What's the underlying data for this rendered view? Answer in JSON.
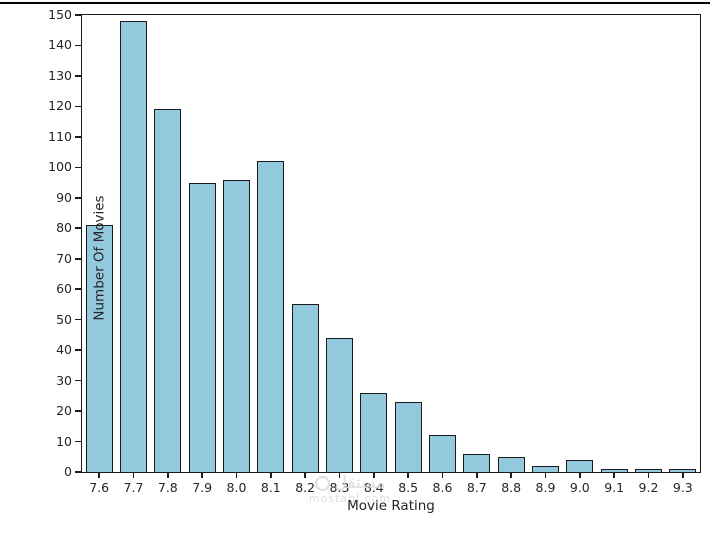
{
  "window": {
    "top_border_color": "#000000"
  },
  "chart_data": {
    "type": "bar",
    "title": "",
    "xlabel": "Movie Rating",
    "ylabel": "Number Of Movies",
    "categories": [
      "7.6",
      "7.7",
      "7.8",
      "7.9",
      "8.0",
      "8.1",
      "8.2",
      "8.3",
      "8.4",
      "8.5",
      "8.6",
      "8.7",
      "8.8",
      "8.9",
      "9.0",
      "9.1",
      "9.2",
      "9.3"
    ],
    "values": [
      81,
      148,
      119,
      95,
      96,
      102,
      55,
      44,
      26,
      23,
      12,
      6,
      5,
      2,
      4,
      1,
      1,
      1
    ],
    "ylim": [
      0,
      150
    ],
    "yticks": [
      0,
      10,
      20,
      30,
      40,
      50,
      60,
      70,
      80,
      90,
      100,
      110,
      120,
      130,
      140,
      150
    ],
    "grid": false,
    "legend": null,
    "bar_fill_color": "#92c9dd",
    "bar_edge_color": "#1c1c1c",
    "axis_color": "#1c1c1c",
    "text_color": "#262626"
  },
  "watermark": {
    "arabic": "مستقل",
    "latin": "mostaql.com",
    "color": "#d9d9d9"
  }
}
